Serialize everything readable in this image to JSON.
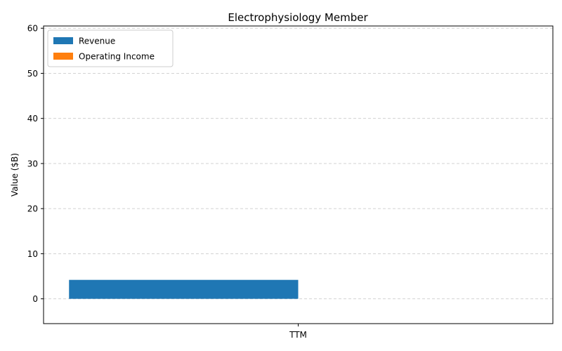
{
  "chart_data": {
    "type": "bar",
    "title": "Electrophysiology Member",
    "xlabel": "",
    "ylabel": "Value ($B)",
    "categories": [
      "TTM"
    ],
    "series": [
      {
        "name": "Revenue",
        "values": [
          4.2
        ],
        "color": "#1f77b4"
      },
      {
        "name": "Operating Income",
        "values": [
          0.0
        ],
        "color": "#ff7f0e"
      }
    ],
    "ylim": [
      -5.5,
      60.5
    ],
    "yticks": [
      0,
      10,
      20,
      30,
      40,
      50,
      60
    ],
    "grid": true,
    "legend_position": "top-left"
  }
}
